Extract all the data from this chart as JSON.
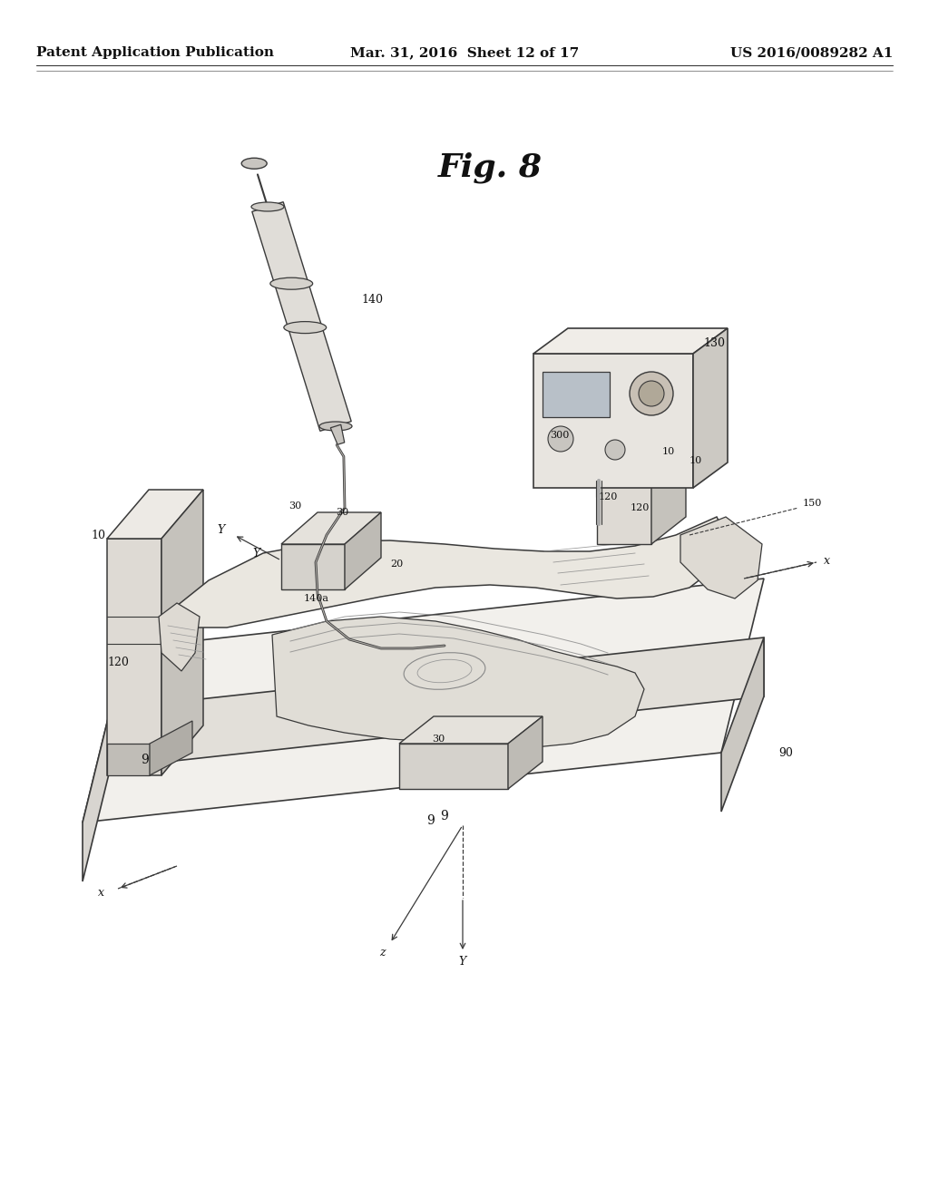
{
  "background_color": "#ffffff",
  "header_left": "Patent Application Publication",
  "header_center": "Mar. 31, 2016  Sheet 12 of 17",
  "header_right": "US 2016/0089282 A1",
  "fig_label": "Fig. 8",
  "page_width": 10.24,
  "page_height": 13.2,
  "dpi": 100,
  "line_color": "#3a3a3a",
  "light_gray": "#d0cdc8",
  "mid_gray": "#b0aea8",
  "fill_light": "#efefec",
  "fill_mid": "#e0ddd8",
  "fill_dark": "#c8c5c0"
}
